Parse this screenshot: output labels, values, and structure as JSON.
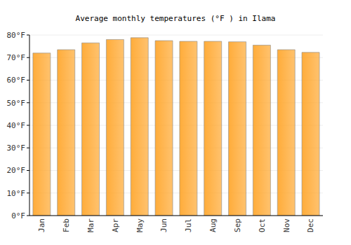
{
  "chart_data": {
    "type": "bar",
    "title": "Average monthly temperatures (°F ) in Ilama",
    "categories": [
      "Jan",
      "Feb",
      "Mar",
      "Apr",
      "May",
      "Jun",
      "Jul",
      "Aug",
      "Sep",
      "Oct",
      "Nov",
      "Dec"
    ],
    "values": [
      72,
      73.5,
      76.5,
      78,
      78.8,
      77.5,
      77.2,
      77.2,
      77,
      75.5,
      73.5,
      72.3
    ],
    "color": "#ffa830",
    "ylim": [
      0,
      80
    ],
    "yticks": [
      {
        "value": 0,
        "label": "0°F"
      },
      {
        "value": 10,
        "label": "10°F"
      },
      {
        "value": 20,
        "label": "20°F"
      },
      {
        "value": 30,
        "label": "30°F"
      },
      {
        "value": 40,
        "label": "40°F"
      },
      {
        "value": 50,
        "label": "50°F"
      },
      {
        "value": 60,
        "label": "60°F"
      },
      {
        "value": 70,
        "label": "70°F"
      },
      {
        "value": 80,
        "label": "80°F"
      }
    ],
    "grid": true
  }
}
